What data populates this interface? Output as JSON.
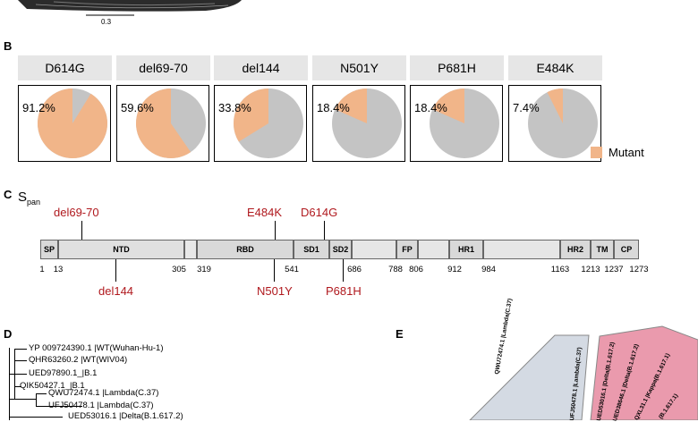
{
  "top_image": {
    "scalebar_label": "0.3"
  },
  "panel_b": {
    "letter": "B",
    "legend_label": "Mutant",
    "colors": {
      "mutant": "#f1b589",
      "other": "#c4c4c4"
    },
    "charts": [
      {
        "title": "D614G",
        "percent_label": "91.2%"
      },
      {
        "title": "del69-70",
        "percent_label": "59.6%"
      },
      {
        "title": "del144",
        "percent_label": "33.8%"
      },
      {
        "title": "N501Y",
        "percent_label": "18.4%"
      },
      {
        "title": "P681H",
        "percent_label": "18.4%"
      },
      {
        "title": "E484K",
        "percent_label": "7.4%"
      }
    ]
  },
  "chart_data": [
    {
      "type": "pie",
      "title": "D614G",
      "categories": [
        "Mutant",
        ""
      ],
      "values": [
        91.2,
        8.8
      ]
    },
    {
      "type": "pie",
      "title": "del69-70",
      "categories": [
        "Mutant",
        ""
      ],
      "values": [
        59.6,
        40.4
      ]
    },
    {
      "type": "pie",
      "title": "del144",
      "categories": [
        "Mutant",
        ""
      ],
      "values": [
        33.8,
        66.2
      ]
    },
    {
      "type": "pie",
      "title": "N501Y",
      "categories": [
        "Mutant",
        ""
      ],
      "values": [
        18.4,
        81.6
      ]
    },
    {
      "type": "pie",
      "title": "P681H",
      "categories": [
        "Mutant",
        ""
      ],
      "values": [
        18.4,
        81.6
      ]
    },
    {
      "type": "pie",
      "title": "E484K",
      "categories": [
        "Mutant",
        ""
      ],
      "values": [
        7.4,
        92.6
      ]
    }
  ],
  "panel_c": {
    "letter": "C",
    "title_main": "S",
    "title_sub": "pan",
    "mutations_above": [
      "del69-70",
      "E484K",
      "D614G"
    ],
    "mutations_below": [
      "del144",
      "N501Y",
      "P681H"
    ],
    "domains": [
      "SP",
      "NTD",
      "RBD",
      "SD1",
      "SD2",
      "FP",
      "HR1",
      "HR2",
      "TM",
      "CP"
    ],
    "positions": [
      "1",
      "13",
      "305",
      "319",
      "541",
      "686",
      "788",
      "806",
      "912",
      "984",
      "1163",
      "1213",
      "1237",
      "1273"
    ]
  },
  "panel_d": {
    "letter": "D",
    "leaves": [
      "YP 009724390.1 |WT(Wuhan-Hu-1)",
      "QHR63260.2 |WT(WIV04)",
      "UED97890.1_|B.1",
      "QIK50427.1_|B.1",
      "QWU72474.1 |Lambda(C.37)",
      "UFJ50478.1 |Lambda(C.37)",
      "UED53016.1 |Delta(B.1.617.2)"
    ]
  },
  "panel_e": {
    "letter": "E",
    "left_labels": [
      "QWU72474.1 |Lambda(C.37)",
      "UFJ50478.1 |Lambda(C.37)"
    ],
    "right_labels": [
      "UED53016.1 |Delta(B.1.617.2)",
      "UED38646.1 |Delta(B.1.617.2)",
      "QXL31.1 |Kappa(B.1.617.1)",
      "(B.1.617.1)"
    ],
    "colors": {
      "left_sector": "#d4dae3",
      "right_sector": "#ea9aad"
    }
  }
}
